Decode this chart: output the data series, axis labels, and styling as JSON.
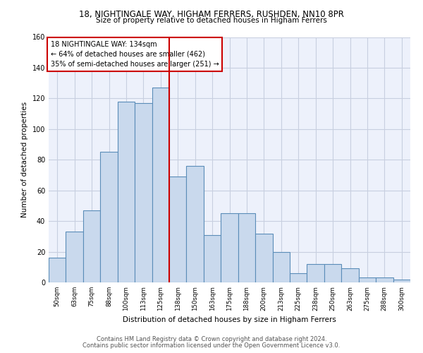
{
  "title1": "18, NIGHTINGALE WAY, HIGHAM FERRERS, RUSHDEN, NN10 8PR",
  "title2": "Size of property relative to detached houses in Higham Ferrers",
  "xlabel": "Distribution of detached houses by size in Higham Ferrers",
  "ylabel": "Number of detached properties",
  "footer1": "Contains HM Land Registry data © Crown copyright and database right 2024.",
  "footer2": "Contains public sector information licensed under the Open Government Licence v3.0.",
  "bin_labels": [
    "50sqm",
    "63sqm",
    "75sqm",
    "88sqm",
    "100sqm",
    "113sqm",
    "125sqm",
    "138sqm",
    "150sqm",
    "163sqm",
    "175sqm",
    "188sqm",
    "200sqm",
    "213sqm",
    "225sqm",
    "238sqm",
    "250sqm",
    "263sqm",
    "275sqm",
    "288sqm",
    "300sqm"
  ],
  "bar_values": [
    16,
    33,
    47,
    85,
    118,
    117,
    127,
    69,
    76,
    31,
    45,
    45,
    32,
    20,
    6,
    12,
    12,
    9,
    3,
    3,
    2
  ],
  "property_label": "18 NIGHTINGALE WAY: 134sqm",
  "annotation_line1": "← 64% of detached houses are smaller (462)",
  "annotation_line2": "35% of semi-detached houses are larger (251) →",
  "bar_color": "#c9d9ed",
  "bar_edge_color": "#5b8db8",
  "vline_color": "#cc0000",
  "annotation_box_color": "#ffffff",
  "annotation_box_edge": "#cc0000",
  "ylim": [
    0,
    160
  ],
  "background_color": "#edf1fb",
  "grid_color": "#c8cfe0"
}
